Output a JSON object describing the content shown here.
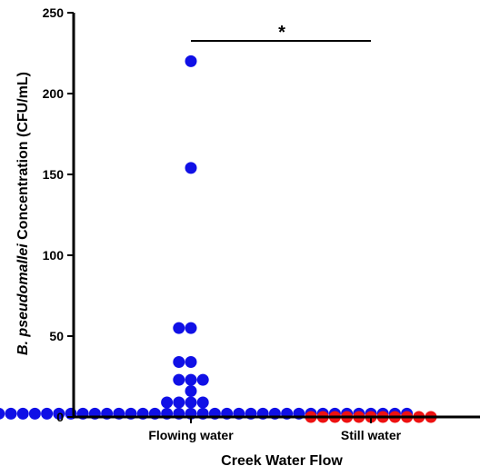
{
  "chart_data": {
    "type": "scatter",
    "xlabel": "Creek Water Flow",
    "ylabel": {
      "italic": "B. pseudomallei",
      "rest": " Concentration (CFU/mL)"
    },
    "categories": [
      "Flowing water",
      "Still water"
    ],
    "ylim": [
      0,
      250
    ],
    "yticks": [
      0,
      50,
      100,
      150,
      200,
      250
    ],
    "significance": {
      "label": "*",
      "between": [
        "Flowing water",
        "Still water"
      ]
    },
    "grid": false,
    "colors": {
      "Flowing water": "#1010e6",
      "Still water": "#ee1111"
    },
    "series": [
      {
        "category": "Flowing water",
        "values": [
          220,
          154,
          55,
          51,
          34,
          33,
          23,
          22,
          21,
          16,
          9,
          7,
          4,
          3,
          2,
          2,
          2,
          1,
          1,
          1,
          1,
          1,
          1,
          1,
          0,
          0,
          0,
          0,
          0,
          0,
          0,
          0,
          0,
          0,
          0,
          0,
          0,
          0,
          0,
          0,
          0,
          0,
          0,
          0,
          0,
          0,
          0,
          0,
          0,
          0,
          0
        ]
      },
      {
        "category": "Still water",
        "values": [
          0,
          0,
          0,
          0,
          0,
          0,
          0,
          0,
          0,
          0,
          0
        ]
      }
    ]
  }
}
